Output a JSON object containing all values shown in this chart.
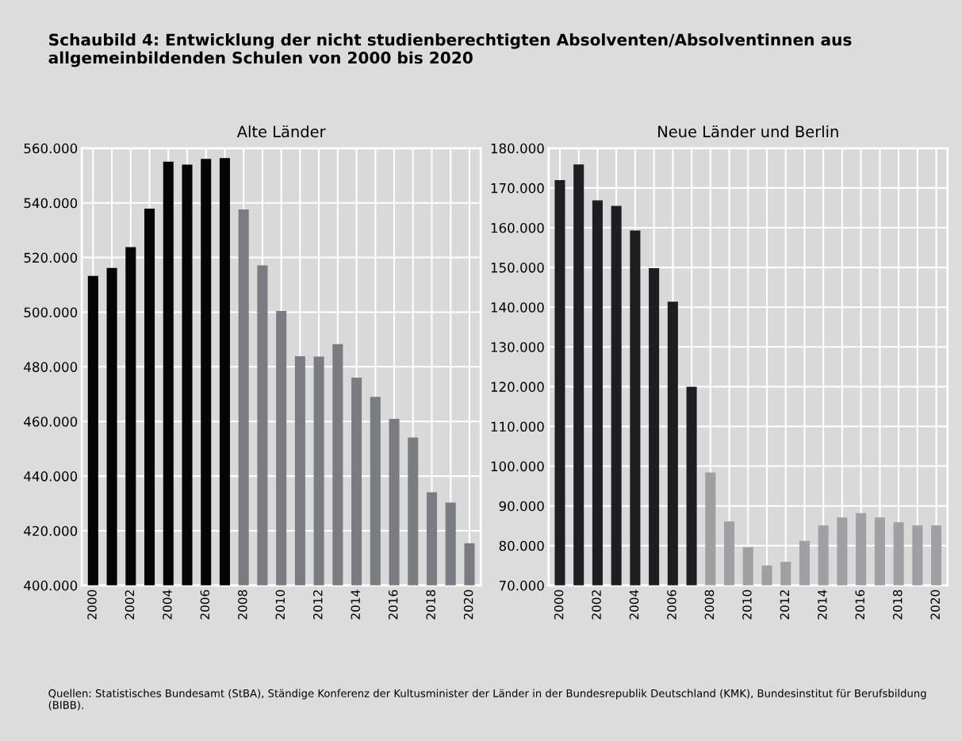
{
  "chart_data": [
    {
      "type": "bar",
      "title": "Alte Länder",
      "categories": [
        "2000",
        null,
        "2002",
        null,
        "2004",
        null,
        "2006",
        null,
        "2008",
        null,
        "2010",
        null,
        "2012",
        null,
        "2014",
        null,
        "2016",
        null,
        "2018",
        null,
        "2020"
      ],
      "values": [
        513300,
        516200,
        523800,
        537900,
        555100,
        554000,
        556100,
        556400,
        537600,
        517100,
        500400,
        483900,
        483700,
        488300,
        476000,
        469000,
        460900,
        454100,
        434100,
        430300,
        415400
      ],
      "colors": [
        "#050505",
        "#050505",
        "#050505",
        "#050505",
        "#050505",
        "#050505",
        "#050505",
        "#050505",
        "#7b7b82",
        "#7b7b82",
        "#7b7b82",
        "#7b7b82",
        "#7b7b82",
        "#7b7b82",
        "#7b7b82",
        "#7b7b82",
        "#7b7b82",
        "#7b7b82",
        "#7b7b82",
        "#7b7b82",
        "#7b7b82"
      ],
      "ylim": [
        400000,
        560000
      ],
      "yticks": [
        {
          "value": 400000,
          "label": "400.000"
        },
        {
          "value": 420000,
          "label": "420.000"
        },
        {
          "value": 440000,
          "label": "440.000"
        },
        {
          "value": 460000,
          "label": "460.000"
        },
        {
          "value": 480000,
          "label": "480.000"
        },
        {
          "value": 500000,
          "label": "500.000"
        },
        {
          "value": 520000,
          "label": "520.000"
        },
        {
          "value": 540000,
          "label": "540.000"
        },
        {
          "value": 560000,
          "label": "560.000"
        }
      ],
      "grid": true
    },
    {
      "type": "bar",
      "title": "Neue Länder und Berlin",
      "categories": [
        "2000",
        null,
        "2002",
        null,
        "2004",
        null,
        "2006",
        null,
        "2008",
        null,
        "2010",
        null,
        "2012",
        null,
        "2014",
        null,
        "2016",
        null,
        "2018",
        null,
        "2020"
      ],
      "values": [
        172000,
        175900,
        166900,
        165500,
        159300,
        149800,
        141400,
        120000,
        98400,
        86100,
        79600,
        75000,
        75900,
        81200,
        85100,
        87100,
        88200,
        87100,
        85900,
        85100,
        85100
      ],
      "colors": [
        "#1e1e22",
        "#1e1e22",
        "#1e1e22",
        "#1e1e22",
        "#1e1e22",
        "#1e1e22",
        "#1e1e22",
        "#1e1e22",
        "#a0a0a4",
        "#a0a0a4",
        "#a0a0a4",
        "#a0a0a4",
        "#a0a0a4",
        "#a0a0a4",
        "#a0a0a4",
        "#a0a0a4",
        "#a0a0a4",
        "#a0a0a4",
        "#a0a0a4",
        "#a0a0a4",
        "#a0a0a4"
      ],
      "ylim": [
        70000,
        180000
      ],
      "yticks": [
        {
          "value": 70000,
          "label": "70.000"
        },
        {
          "value": 80000,
          "label": "80.000"
        },
        {
          "value": 90000,
          "label": "90.000"
        },
        {
          "value": 100000,
          "label": "100.000"
        },
        {
          "value": 110000,
          "label": "110.000"
        },
        {
          "value": 120000,
          "label": "120.000"
        },
        {
          "value": 130000,
          "label": "130.000"
        },
        {
          "value": 140000,
          "label": "140.000"
        },
        {
          "value": 150000,
          "label": "150.000"
        },
        {
          "value": 160000,
          "label": "160.000"
        },
        {
          "value": 170000,
          "label": "170.000"
        },
        {
          "value": 180000,
          "label": "180.000"
        }
      ],
      "grid": true,
      "annotations": [
        "Schaubild 4: Entwicklung der nicht studienberechtigten Absolventen/Absolventinnen aus allgemeinbildenden Schulen von 2000 bis 2020",
        "Quellen: Statistisches Bundesamt (StBA), Ständige Konferenz der Kultusminister der Länder in der Bundesrepublik Deutschland (KMK), Bundesinstitut für Berufsbildung (BIBB)."
      ]
    }
  ]
}
